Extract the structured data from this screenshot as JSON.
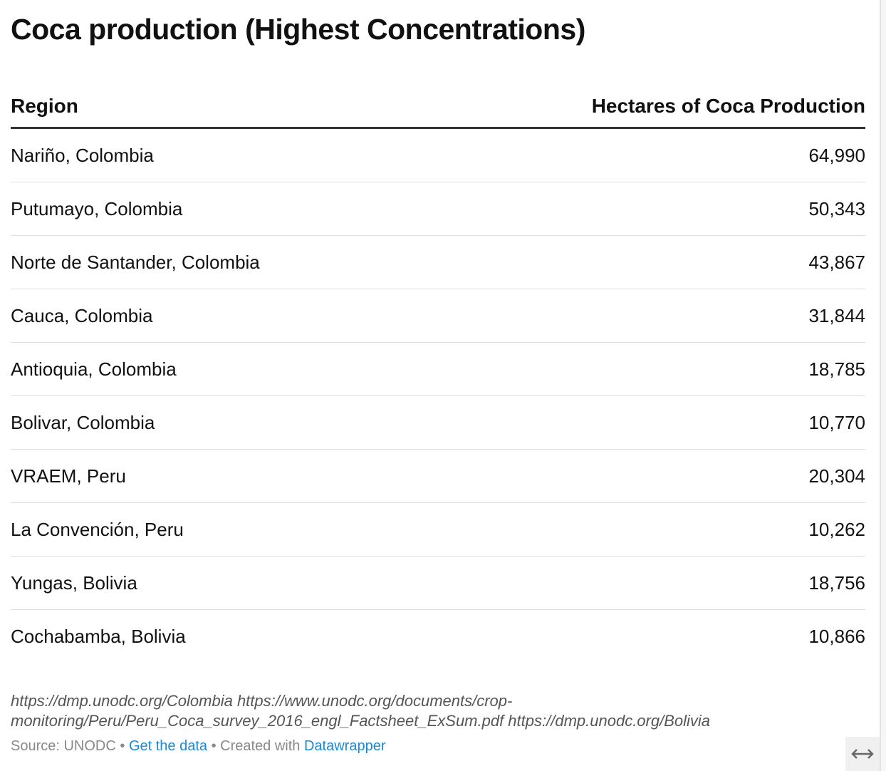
{
  "title": "Coca production (Highest Concentrations)",
  "table": {
    "headers": [
      "Region",
      "Hectares of Coca Production"
    ],
    "rows": [
      {
        "region": "Nariño, Colombia",
        "hectares": "64,990"
      },
      {
        "region": "Putumayo, Colombia",
        "hectares": "50,343"
      },
      {
        "region": "Norte de Santander, Colombia",
        "hectares": "43,867"
      },
      {
        "region": "Cauca, Colombia",
        "hectares": "31,844"
      },
      {
        "region": "Antioquia, Colombia",
        "hectares": "18,785"
      },
      {
        "region": "Bolivar, Colombia",
        "hectares": "10,770"
      },
      {
        "region": "VRAEM, Peru",
        "hectares": "20,304"
      },
      {
        "region": "La Convención, Peru",
        "hectares": "10,262"
      },
      {
        "region": "Yungas, Bolivia",
        "hectares": "18,756"
      },
      {
        "region": "Cochabamba, Bolivia",
        "hectares": "10,866"
      }
    ]
  },
  "notes": "https://dmp.unodc.org/Colombia https://www.unodc.org/documents/crop-monitoring/Peru/Peru_Coca_survey_2016_engl_Factsheet_ExSum.pdf https://dmp.unodc.org/Bolivia",
  "footer": {
    "source": "Source: UNODC",
    "sep": " • ",
    "get_data": "Get the data",
    "created_with": "Created with",
    "datawrapper": "Datawrapper"
  },
  "icons": {
    "resize": "horizontal-arrows-icon"
  },
  "colors": {
    "link": "#1a8ad6",
    "text": "#111111",
    "muted": "#888888"
  }
}
